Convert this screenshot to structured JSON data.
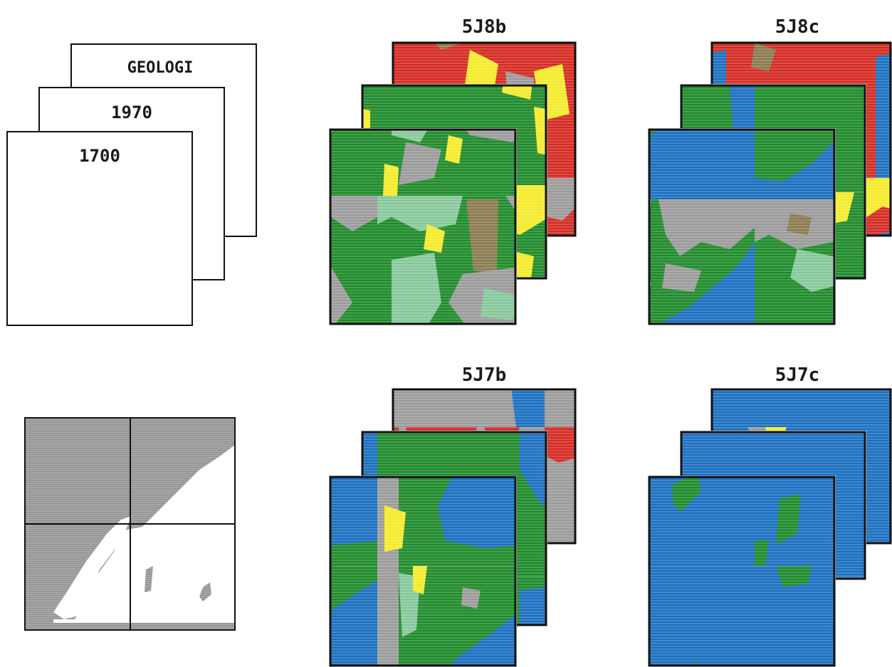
{
  "layer_schema": {
    "labels": [
      "GEOLOGI",
      "1970",
      "1700"
    ]
  },
  "map_sheets": [
    {
      "id": "5J8b",
      "label": "5J8b"
    },
    {
      "id": "5J8c",
      "label": "5J8c"
    },
    {
      "id": "5J7b",
      "label": "5J7b"
    },
    {
      "id": "5J7c",
      "label": "5J7c"
    }
  ],
  "colors": {
    "forest_green": "#1e8a2a",
    "light_green": "#86c79a",
    "yellow": "#f5ea2a",
    "red": "#d42a22",
    "gray": "#9a9a9a",
    "olive": "#8a7a50",
    "water_blue": "#1a6fc0",
    "frame": "#111111",
    "mask_gray": "#8f8f8f"
  }
}
